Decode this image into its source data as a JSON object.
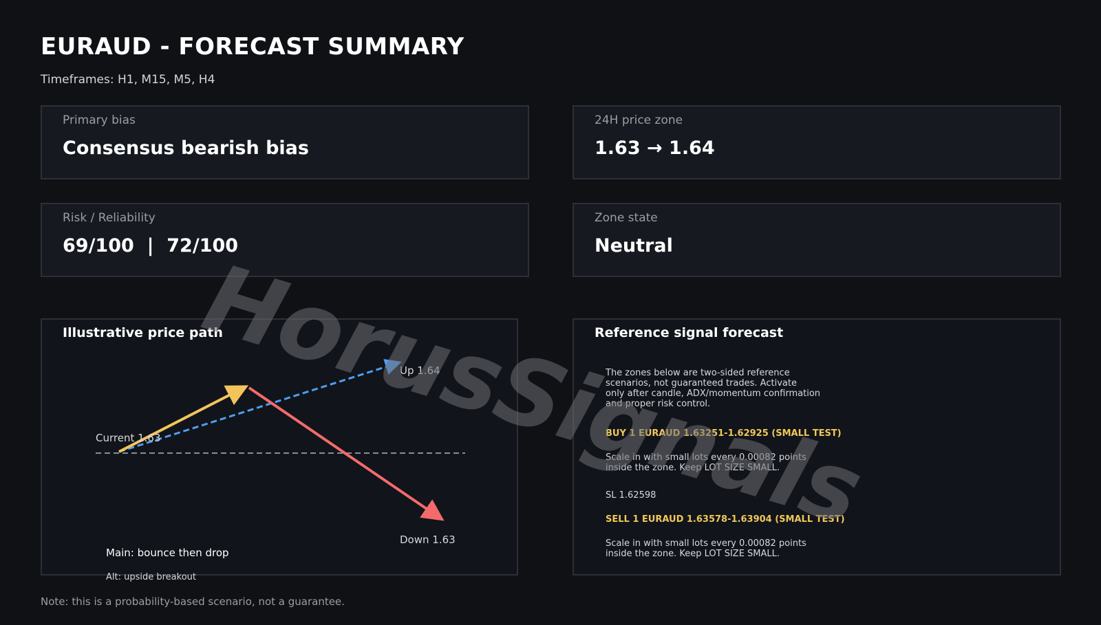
{
  "header": {
    "title": "EURAUD - FORECAST SUMMARY",
    "timeframes": "Timeframes: H1, M15, M5, H4"
  },
  "cards": {
    "primary_bias": {
      "label": "Primary bias",
      "value": "Consensus bearish bias"
    },
    "price_zone": {
      "label": "24H price zone",
      "value": "1.63 → 1.64"
    },
    "risk": {
      "label": "Risk / Reliability",
      "value": "69/100  |  72/100"
    },
    "zone_state": {
      "label": "Zone state",
      "value": "Neutral"
    }
  },
  "price_path": {
    "title": "Illustrative price path",
    "current_label": "Current 1.63",
    "up_label": "Up 1.64",
    "down_label": "Down 1.63",
    "main_label": "Main: bounce then drop",
    "alt_label": "Alt: upside breakout",
    "colors": {
      "main_up": "#f2c55c",
      "main_down": "#f26b6b",
      "alt": "#4f9ef0",
      "baseline": "#8a8f96"
    }
  },
  "forecast": {
    "title": "Reference signal forecast",
    "intro": "The zones below are two-sided reference\nscenarios, not guaranteed trades. Activate\nonly after candle, ADX/momentum confirmation\nand proper risk control.",
    "buy_heading": "BUY 1 EURAUD 1.63251-1.62925 (SMALL TEST)",
    "buy_text": "Scale in with small lots every 0.00082 points\ninside the zone. Keep LOT SIZE SMALL.",
    "sl": "SL 1.62598",
    "sell_heading": "SELL 1 EURAUD 1.63578-1.63904 (SMALL TEST)",
    "sell_text": "Scale in with small lots every 0.00082 points\ninside the zone. Keep LOT SIZE SMALL."
  },
  "footer": {
    "note": "Note: this is a probability-based scenario, not a guarantee."
  },
  "watermark": "HorusSignals"
}
